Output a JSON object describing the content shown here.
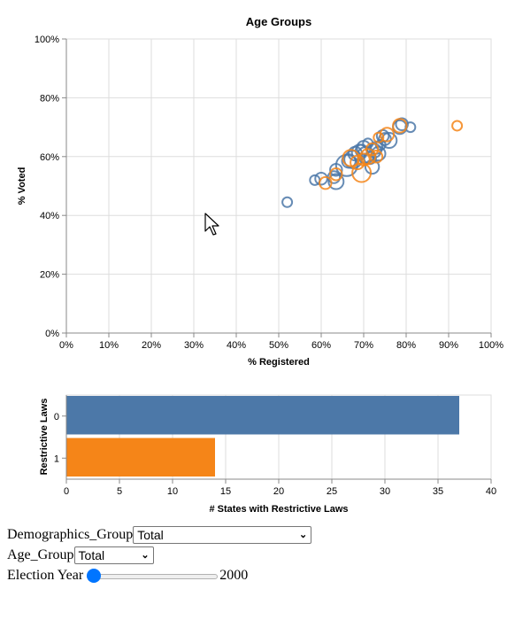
{
  "chart_data": [
    {
      "type": "scatter",
      "title": "Age Groups",
      "xlabel": "% Registered",
      "ylabel": "% Voted",
      "xlim": [
        0,
        100
      ],
      "ylim": [
        0,
        100
      ],
      "grid": true,
      "x_ticks": [
        "0%",
        "10%",
        "20%",
        "30%",
        "40%",
        "50%",
        "60%",
        "70%",
        "80%",
        "90%",
        "100%"
      ],
      "y_ticks": [
        "0%",
        "20%",
        "40%",
        "60%",
        "80%",
        "100%"
      ],
      "series": [
        {
          "color": "#4c78a8",
          "points": [
            {
              "x": 52,
              "y": 44.5,
              "size": 1
            },
            {
              "x": 58.5,
              "y": 52,
              "size": 1
            },
            {
              "x": 60,
              "y": 52.5,
              "size": 2
            },
            {
              "x": 63,
              "y": 53,
              "size": 2
            },
            {
              "x": 63.5,
              "y": 51.5,
              "size": 4
            },
            {
              "x": 63.5,
              "y": 55.5,
              "size": 2
            },
            {
              "x": 66,
              "y": 57,
              "size": 10
            },
            {
              "x": 66.5,
              "y": 58.5,
              "size": 3
            },
            {
              "x": 67.5,
              "y": 59,
              "size": 6
            },
            {
              "x": 68,
              "y": 61,
              "size": 3
            },
            {
              "x": 69,
              "y": 61.5,
              "size": 4
            },
            {
              "x": 69.5,
              "y": 62,
              "size": 2
            },
            {
              "x": 70,
              "y": 63,
              "size": 3
            },
            {
              "x": 70.5,
              "y": 60.5,
              "size": 5
            },
            {
              "x": 71,
              "y": 64.5,
              "size": 1
            },
            {
              "x": 71.5,
              "y": 59.5,
              "size": 2
            },
            {
              "x": 72,
              "y": 56.5,
              "size": 3
            },
            {
              "x": 72.5,
              "y": 62,
              "size": 3
            },
            {
              "x": 73,
              "y": 63,
              "size": 2
            },
            {
              "x": 73.5,
              "y": 61,
              "size": 3
            },
            {
              "x": 74,
              "y": 64,
              "size": 1
            },
            {
              "x": 74.5,
              "y": 67,
              "size": 2
            },
            {
              "x": 75,
              "y": 66,
              "size": 2
            },
            {
              "x": 76,
              "y": 65.5,
              "size": 4
            },
            {
              "x": 78.5,
              "y": 70,
              "size": 3
            },
            {
              "x": 79,
              "y": 71,
              "size": 2
            },
            {
              "x": 81,
              "y": 70,
              "size": 1
            }
          ]
        },
        {
          "color": "#f58518",
          "points": [
            {
              "x": 61,
              "y": 51,
              "size": 2
            },
            {
              "x": 63.5,
              "y": 54,
              "size": 2
            },
            {
              "x": 67,
              "y": 59.5,
              "size": 5
            },
            {
              "x": 68.5,
              "y": 58,
              "size": 3
            },
            {
              "x": 69.5,
              "y": 54.5,
              "size": 7
            },
            {
              "x": 70,
              "y": 59,
              "size": 2
            },
            {
              "x": 71,
              "y": 60,
              "size": 4
            },
            {
              "x": 72,
              "y": 62.5,
              "size": 2
            },
            {
              "x": 73,
              "y": 60,
              "size": 2
            },
            {
              "x": 73.5,
              "y": 66.5,
              "size": 1
            },
            {
              "x": 75.5,
              "y": 67.5,
              "size": 3
            },
            {
              "x": 78.5,
              "y": 70.5,
              "size": 3
            },
            {
              "x": 92,
              "y": 70.5,
              "size": 1
            }
          ]
        }
      ]
    },
    {
      "type": "bar",
      "orientation": "horizontal",
      "xlabel": "# States with Restrictive Laws",
      "ylabel": "Restrictive Laws",
      "categories": [
        "0",
        "1"
      ],
      "values": [
        37,
        14
      ],
      "colors": [
        "#4c78a8",
        "#f58518"
      ],
      "xlim": [
        0,
        40
      ],
      "x_ticks": [
        "0",
        "5",
        "10",
        "15",
        "20",
        "25",
        "30",
        "35",
        "40"
      ],
      "grid": true
    }
  ],
  "controls": {
    "demographics_label": "Demographics_Group",
    "demographics_value": "Total",
    "age_label": "Age_Group",
    "age_value": "Total",
    "year_label": "Election Year",
    "year_value": "2000",
    "year_slider_position": 0
  },
  "icons": {
    "dropdown": "chevron-down-icon",
    "cursor": "mouse-pointer-icon"
  }
}
